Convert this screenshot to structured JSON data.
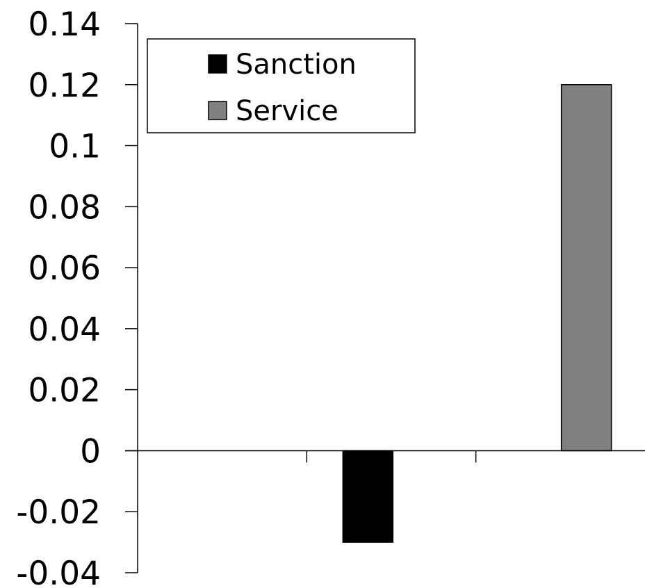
{
  "chart_data": {
    "type": "bar",
    "categories": [
      "",
      "",
      ""
    ],
    "series": [
      {
        "name": "Sanction",
        "color": "#000000",
        "values": [
          null,
          -0.03,
          null
        ]
      },
      {
        "name": "Service",
        "color": "#808080",
        "values": [
          null,
          null,
          0.12
        ]
      }
    ],
    "ylim": [
      -0.04,
      0.14
    ],
    "yticks": [
      0.14,
      0.12,
      0.1,
      0.08,
      0.06,
      0.04,
      0.02,
      0,
      -0.02,
      -0.04
    ],
    "ytick_labels": [
      "0.14",
      "0.12",
      "0.1",
      "0.08",
      "0.06",
      "0.04",
      "0.02",
      "0",
      "-0.02",
      "-0.04"
    ],
    "grid": false,
    "legend_position": "top-left",
    "title": "",
    "xlabel": "",
    "ylabel": ""
  }
}
